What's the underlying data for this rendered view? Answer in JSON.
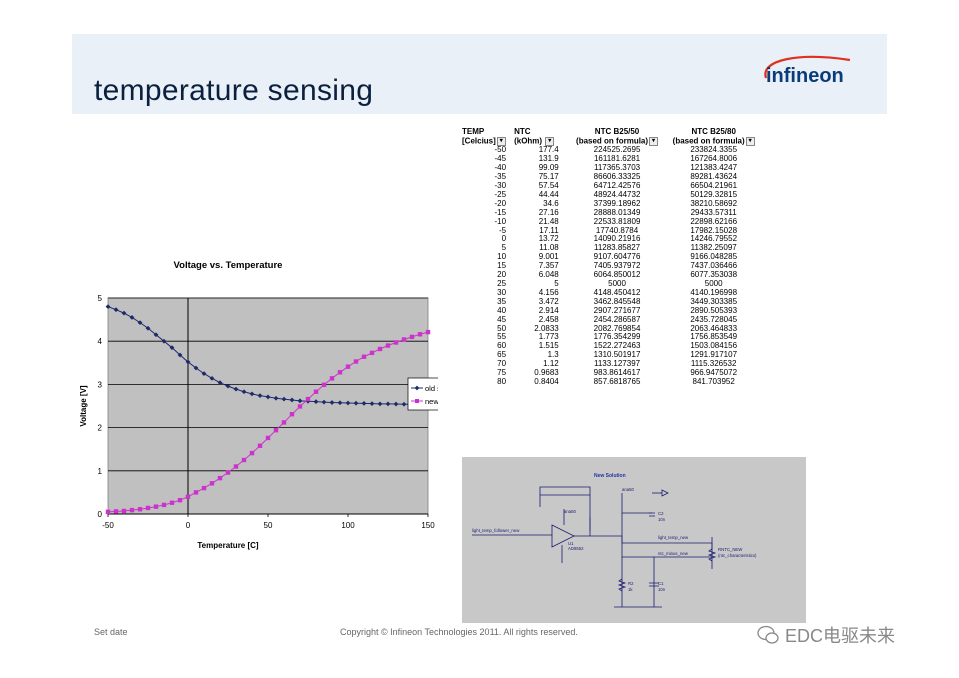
{
  "header": {
    "title": "temperature sensing",
    "logo_text": "infineon"
  },
  "chart_data": {
    "type": "scatter",
    "title": "Voltage vs. Temperature",
    "xlabel": "Temperature [C]",
    "ylabel": "Voltage [V]",
    "xlim": [
      -50,
      150
    ],
    "ylim": [
      0,
      5
    ],
    "xticks": [
      -50,
      0,
      50,
      100,
      150
    ],
    "yticks": [
      0,
      1,
      2,
      3,
      4,
      5
    ],
    "xtick_labels": [
      "-50",
      "0",
      "50",
      "100",
      "150"
    ],
    "ytick_labels": [
      "0",
      "1",
      "2",
      "3",
      "4",
      "5"
    ],
    "legend_position": "right",
    "series": [
      {
        "name": "old solutio",
        "color": "#1f2a6b",
        "marker": "diamond",
        "x": [
          -50,
          -45,
          -40,
          -35,
          -30,
          -25,
          -20,
          -15,
          -10,
          -5,
          0,
          5,
          10,
          15,
          20,
          25,
          30,
          35,
          40,
          45,
          50,
          55,
          60,
          65,
          70,
          75,
          80,
          85,
          90,
          95,
          100,
          105,
          110,
          115,
          120,
          125,
          130,
          135,
          140,
          145,
          150
        ],
        "y": [
          4.8,
          4.73,
          4.65,
          4.55,
          4.43,
          4.3,
          4.15,
          4.0,
          3.85,
          3.68,
          3.52,
          3.38,
          3.25,
          3.14,
          3.04,
          2.96,
          2.89,
          2.83,
          2.78,
          2.74,
          2.71,
          2.68,
          2.66,
          2.64,
          2.62,
          2.61,
          2.6,
          2.59,
          2.58,
          2.575,
          2.57,
          2.565,
          2.56,
          2.555,
          2.55,
          2.55,
          2.545,
          2.54,
          2.54,
          2.54,
          2.535
        ]
      },
      {
        "name": "new soluti",
        "color": "#cc33cc",
        "marker": "square",
        "x": [
          -50,
          -45,
          -40,
          -35,
          -30,
          -25,
          -20,
          -15,
          -10,
          -5,
          0,
          5,
          10,
          15,
          20,
          25,
          30,
          35,
          40,
          45,
          50,
          55,
          60,
          65,
          70,
          75,
          80,
          85,
          90,
          95,
          100,
          105,
          110,
          115,
          120,
          125,
          130,
          135,
          140,
          145,
          150
        ],
        "y": [
          0.05,
          0.06,
          0.07,
          0.09,
          0.11,
          0.14,
          0.17,
          0.21,
          0.26,
          0.32,
          0.4,
          0.5,
          0.6,
          0.71,
          0.83,
          0.96,
          1.1,
          1.25,
          1.41,
          1.58,
          1.76,
          1.94,
          2.12,
          2.31,
          2.49,
          2.66,
          2.83,
          2.99,
          3.14,
          3.28,
          3.41,
          3.53,
          3.64,
          3.73,
          3.82,
          3.9,
          3.97,
          4.04,
          4.1,
          4.16,
          4.21
        ]
      }
    ]
  },
  "table": {
    "headers": [
      [
        "TEMP",
        "NTC",
        "NTC B25/50",
        "NTC B25/80"
      ],
      [
        "[Celcius]",
        "(kOhm)",
        "(based on formula)",
        "(based on formula)"
      ]
    ],
    "rows": [
      [
        "-50",
        "177.4",
        "224525.2695",
        "233824.3355"
      ],
      [
        "-45",
        "131.9",
        "161181.6281",
        "167264.8006"
      ],
      [
        "-40",
        "99.09",
        "117365.3703",
        "121383.4247"
      ],
      [
        "-35",
        "75.17",
        "86606.33325",
        "89281.43624"
      ],
      [
        "-30",
        "57.54",
        "64712.42576",
        "66504.21961"
      ],
      [
        "-25",
        "44.44",
        "48924.44732",
        "50129.32815"
      ],
      [
        "-20",
        "34.6",
        "37399.18962",
        "38210.58692"
      ],
      [
        "-15",
        "27.16",
        "28888.01349",
        "29433.57311"
      ],
      [
        "-10",
        "21.48",
        "22533.81809",
        "22898.62166"
      ],
      [
        "-5",
        "17.11",
        "17740.8784",
        "17982.15028"
      ],
      [
        "0",
        "13.72",
        "14090.21916",
        "14246.79552"
      ],
      [
        "5",
        "11.08",
        "11283.85827",
        "11382.25097"
      ],
      [
        "10",
        "9.001",
        "9107.604776",
        "9166.048285"
      ],
      [
        "15",
        "7.357",
        "7405.937972",
        "7437.036466"
      ],
      [
        "20",
        "6.048",
        "6064.850012",
        "6077.353038"
      ],
      [
        "25",
        "5",
        "5000",
        "5000"
      ],
      [
        "30",
        "4.156",
        "4148.450412",
        "4140.196998"
      ],
      [
        "35",
        "3.472",
        "3462.845548",
        "3449.303385"
      ],
      [
        "40",
        "2.914",
        "2907.271677",
        "2890.505393"
      ],
      [
        "45",
        "2.458",
        "2454.286587",
        "2435.728045"
      ],
      [
        "50",
        "2.0833",
        "2082.769854",
        "2063.464833"
      ],
      [
        "55",
        "1.773",
        "1776.354299",
        "1756.853549"
      ],
      [
        "60",
        "1.515",
        "1522.272463",
        "1503.084156"
      ],
      [
        "65",
        "1.3",
        "1310.501917",
        "1291.917107"
      ],
      [
        "70",
        "1.12",
        "1133.127397",
        "1115.326532"
      ],
      [
        "75",
        "0.9683",
        "983.8614617",
        "966.9475072"
      ],
      [
        "80",
        "0.8404",
        "857.6818765",
        "841.703952"
      ]
    ]
  },
  "schematic": {
    "title": "New Solution",
    "labels": {
      "net_follower": "light_temp_follower_new",
      "net_light": "light_temp_new",
      "net_ntc": "ntc_minus_new",
      "ana50_a": "ana50",
      "ana50_b": "ana50",
      "u1": "U1",
      "u1_part": "AD8552",
      "c2": "C2",
      "c2_val": "10n",
      "c1": "C1",
      "c1_val": "10n",
      "r2": "R2",
      "r2_val": "1k",
      "rntc": "RNTC_NEW",
      "rntc_sub": "(ntc_characteristics)"
    }
  },
  "footer": {
    "left": "Set date",
    "center": "Copyright © Infineon Technologies 2011. All rights reserved.",
    "watermark": "EDC电驱未来"
  }
}
